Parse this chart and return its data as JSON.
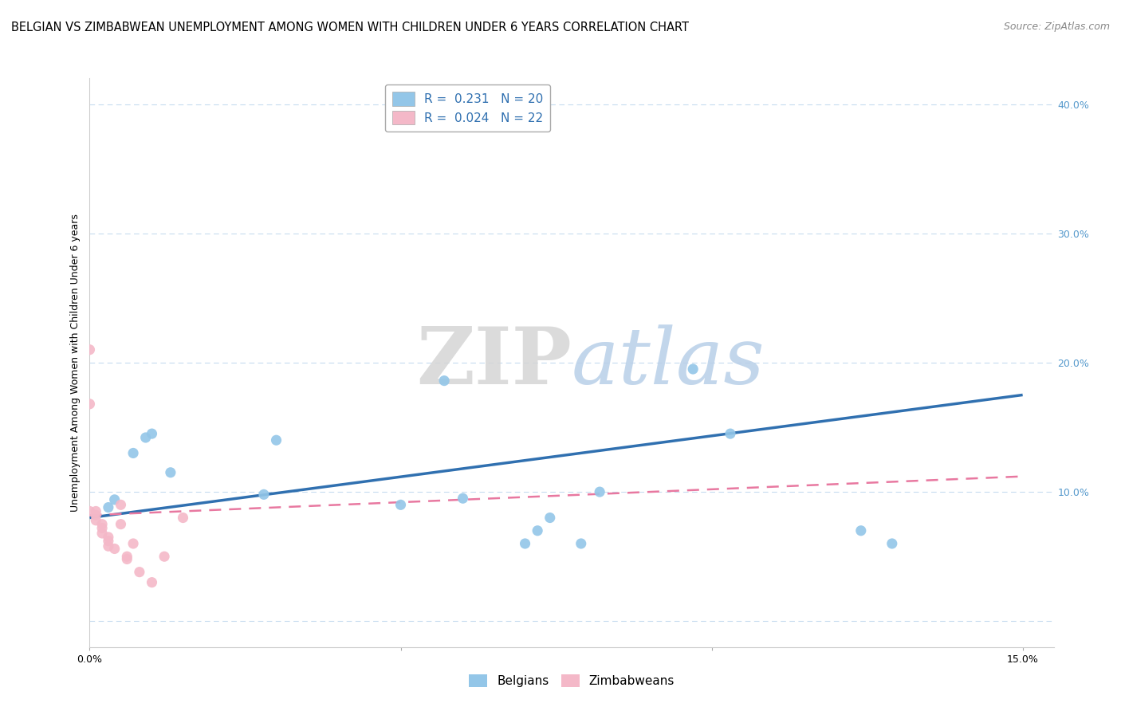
{
  "title": "BELGIAN VS ZIMBABWEAN UNEMPLOYMENT AMONG WOMEN WITH CHILDREN UNDER 6 YEARS CORRELATION CHART",
  "source": "Source: ZipAtlas.com",
  "ylabel": "Unemployment Among Women with Children Under 6 years",
  "legend_blue_label": "R =  0.231   N = 20",
  "legend_pink_label": "R =  0.024   N = 22",
  "legend_blue_sublabel": "Belgians",
  "legend_pink_sublabel": "Zimbabweans",
  "blue_color": "#93c6e8",
  "pink_color": "#f4b8c8",
  "blue_line_color": "#3070b0",
  "pink_line_color": "#e878a0",
  "right_axis_color": "#5599cc",
  "xlim": [
    0.0,
    0.155
  ],
  "ylim": [
    -0.02,
    0.42
  ],
  "yticks": [
    0.0,
    0.1,
    0.2,
    0.3,
    0.4
  ],
  "ytick_right_labels": [
    "",
    "10.0%",
    "20.0%",
    "30.0%",
    "40.0%"
  ],
  "xticks": [
    0.0,
    0.05,
    0.1,
    0.15
  ],
  "xtick_labels": [
    "0.0%",
    "",
    "",
    "15.0%"
  ],
  "blue_x": [
    0.003,
    0.004,
    0.007,
    0.009,
    0.01,
    0.013,
    0.028,
    0.03,
    0.05,
    0.057,
    0.06,
    0.07,
    0.072,
    0.074,
    0.079,
    0.082,
    0.097,
    0.103,
    0.124,
    0.129
  ],
  "blue_y": [
    0.088,
    0.094,
    0.13,
    0.142,
    0.145,
    0.115,
    0.098,
    0.14,
    0.09,
    0.186,
    0.095,
    0.06,
    0.07,
    0.08,
    0.06,
    0.1,
    0.195,
    0.145,
    0.07,
    0.06
  ],
  "pink_x": [
    0.0,
    0.0,
    0.0,
    0.001,
    0.001,
    0.001,
    0.002,
    0.002,
    0.002,
    0.003,
    0.003,
    0.003,
    0.004,
    0.005,
    0.005,
    0.006,
    0.006,
    0.007,
    0.008,
    0.01,
    0.012,
    0.015
  ],
  "pink_y": [
    0.21,
    0.168,
    0.085,
    0.085,
    0.082,
    0.078,
    0.075,
    0.072,
    0.068,
    0.065,
    0.062,
    0.058,
    0.056,
    0.09,
    0.075,
    0.05,
    0.048,
    0.06,
    0.038,
    0.03,
    0.05,
    0.08
  ],
  "blue_trend_x": [
    0.0,
    0.15
  ],
  "blue_trend_y": [
    0.08,
    0.175
  ],
  "pink_trend_x": [
    0.0,
    0.15
  ],
  "pink_trend_y": [
    0.082,
    0.112
  ],
  "title_fontsize": 10.5,
  "source_fontsize": 9,
  "axis_label_fontsize": 9,
  "tick_fontsize": 9,
  "legend_fontsize": 11,
  "scatter_size": 90,
  "background_color": "#ffffff",
  "grid_color": "#c6dbef",
  "legend_text_color": "#3070b0"
}
